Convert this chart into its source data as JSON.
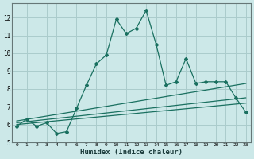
{
  "xlabel": "Humidex (Indice chaleur)",
  "background_color": "#cce8e8",
  "grid_color": "#aacccc",
  "line_color": "#1a7060",
  "xlim": [
    -0.5,
    23.5
  ],
  "ylim": [
    5.0,
    12.8
  ],
  "xticks": [
    0,
    1,
    2,
    3,
    4,
    5,
    6,
    7,
    8,
    9,
    10,
    11,
    12,
    13,
    14,
    15,
    16,
    17,
    18,
    19,
    20,
    21,
    22,
    23
  ],
  "yticks": [
    5,
    6,
    7,
    8,
    9,
    10,
    11,
    12
  ],
  "main_x": [
    0,
    1,
    2,
    3,
    4,
    5,
    6,
    7,
    8,
    9,
    10,
    11,
    12,
    13,
    14,
    15,
    16,
    17,
    18,
    19,
    20,
    21,
    22,
    23
  ],
  "main_y": [
    5.9,
    6.3,
    5.9,
    6.1,
    5.5,
    5.6,
    6.9,
    8.2,
    9.4,
    9.9,
    11.9,
    11.1,
    11.4,
    12.4,
    10.5,
    8.2,
    8.4,
    9.7,
    8.3,
    8.4,
    8.4,
    8.4,
    7.5,
    6.7
  ],
  "line2_x": [
    0,
    23
  ],
  "line2_y": [
    6.0,
    7.2
  ],
  "line3_x": [
    0,
    23
  ],
  "line3_y": [
    6.1,
    7.5
  ],
  "line4_x": [
    0,
    23
  ],
  "line4_y": [
    6.2,
    8.3
  ]
}
